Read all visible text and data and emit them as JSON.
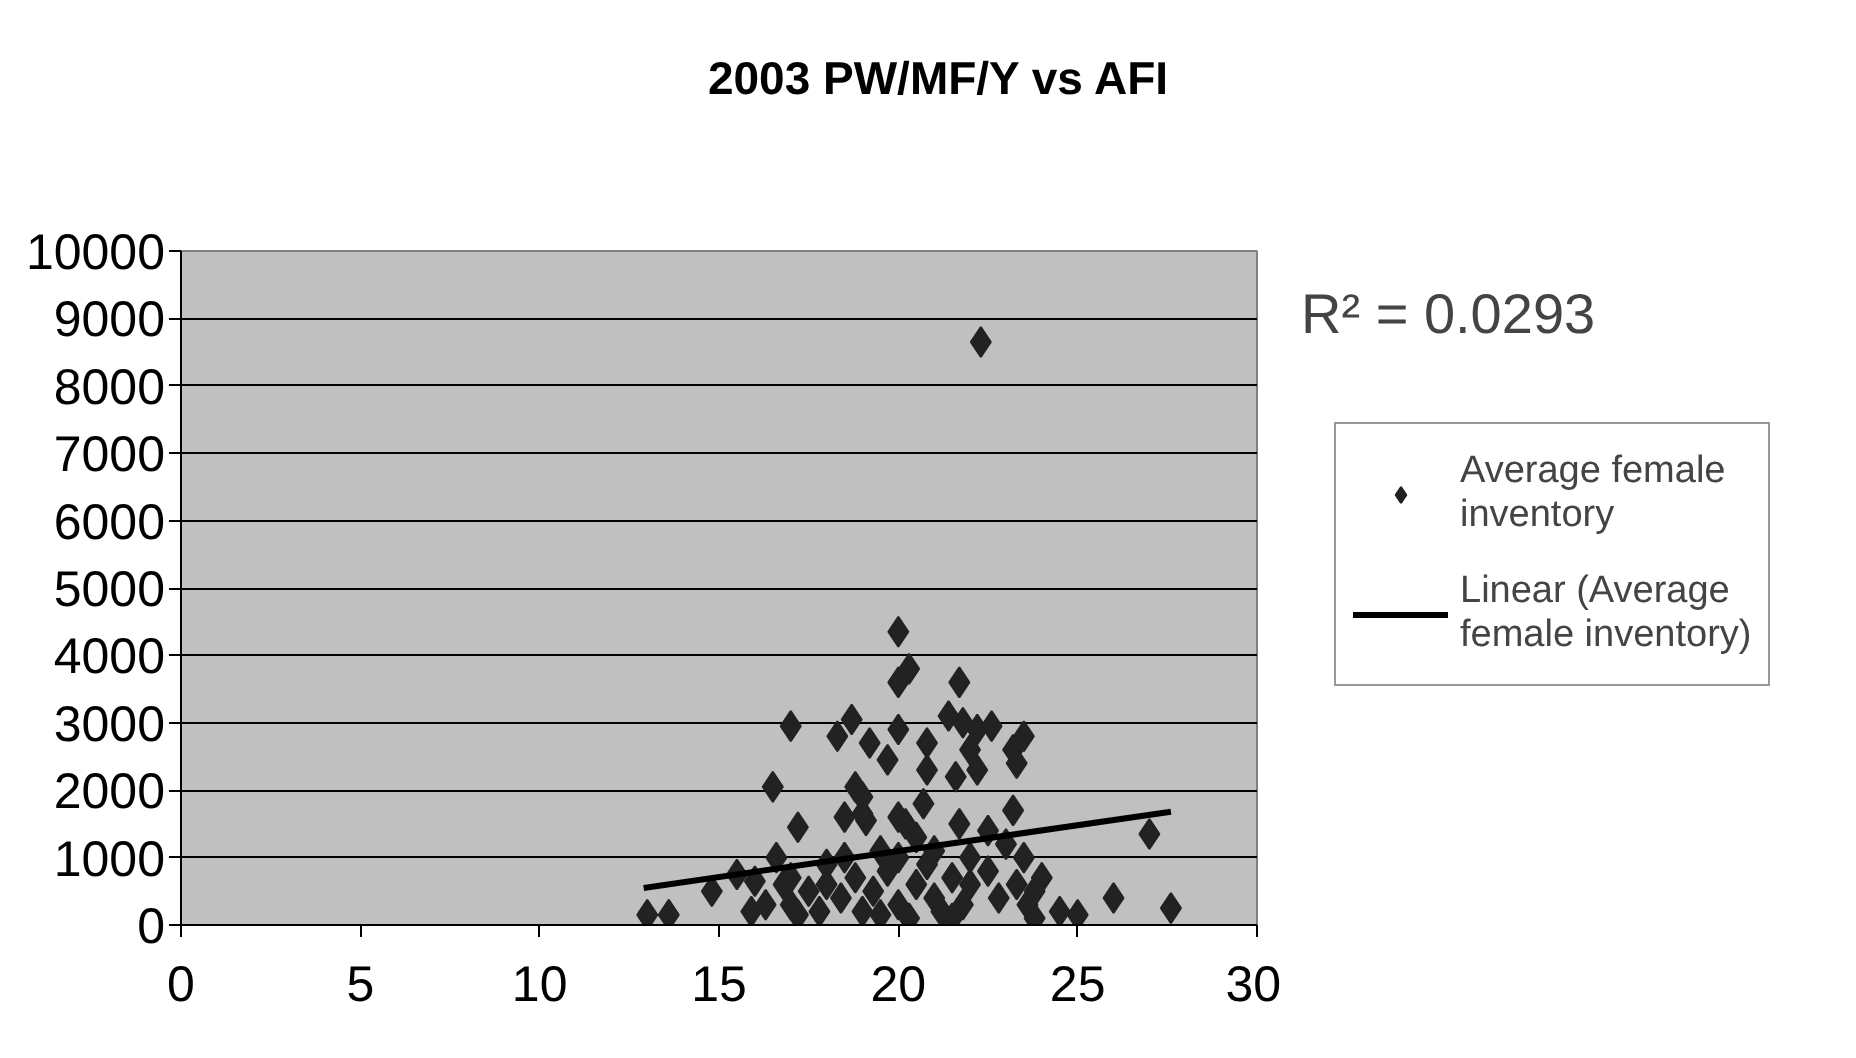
{
  "chart_data": {
    "type": "scatter",
    "title": "2003 PW/MF/Y vs AFI",
    "xlim": [
      0,
      30
    ],
    "xticks": [
      0,
      5,
      10,
      15,
      20,
      25,
      30
    ],
    "ylim": [
      0,
      10000
    ],
    "yticks": [
      0,
      1000,
      2000,
      3000,
      4000,
      5000,
      6000,
      7000,
      8000,
      9000,
      10000
    ],
    "grid": "y",
    "legend": "right",
    "annotations": [
      "R² = 0.0293"
    ],
    "series": [
      {
        "name": "Average female inventory",
        "color": "#222222",
        "marker": "diamond",
        "x": [
          22.3,
          20,
          20.3,
          20,
          21.7,
          17,
          18.7,
          18.3,
          19.2,
          20,
          20.8,
          21.4,
          21.8,
          22.2,
          22.6,
          23.2,
          23.5,
          23.3,
          22,
          21.6,
          22.2,
          20.8,
          19.7,
          18.8,
          19,
          16.5,
          17.2,
          18.5,
          19.1,
          19,
          20,
          20.2,
          20.7,
          21.7,
          22.5,
          23.2,
          23,
          23.5,
          27,
          26,
          27.6,
          13,
          13.6,
          14.8,
          15.5,
          16,
          16.6,
          15.9,
          16.8,
          17,
          17.2,
          17.5,
          17.8,
          18,
          18.4,
          18.8,
          19,
          19.3,
          19.7,
          20,
          20.3,
          20.5,
          20.8,
          21,
          21.2,
          21.5,
          21.8,
          22,
          22.5,
          22.8,
          23.3,
          23.6,
          23.8,
          24,
          24.5,
          25,
          17,
          18.5,
          19.5,
          20.5,
          21,
          22,
          23.8,
          16.3,
          19.5,
          21.5,
          20,
          18
        ],
        "values": [
          8650,
          4350,
          3800,
          3600,
          3600,
          2950,
          3050,
          2800,
          2700,
          2900,
          2700,
          3100,
          3000,
          2900,
          2950,
          2600,
          2800,
          2400,
          2600,
          2200,
          2300,
          2300,
          2450,
          2050,
          1900,
          2050,
          1450,
          1600,
          1550,
          1650,
          1600,
          1500,
          1800,
          1500,
          1400,
          1700,
          1200,
          1000,
          1350,
          400,
          250,
          150,
          150,
          500,
          750,
          650,
          1000,
          200,
          600,
          300,
          150,
          500,
          200,
          900,
          400,
          700,
          200,
          500,
          800,
          300,
          100,
          600,
          900,
          400,
          200,
          700,
          300,
          600,
          800,
          400,
          600,
          300,
          100,
          700,
          200,
          150,
          700,
          1000,
          1100,
          1300,
          1100,
          1000,
          500,
          300,
          150,
          100,
          1000,
          600
        ]
      },
      {
        "name": "Linear (Average female inventory)",
        "type": "line",
        "marker": "none",
        "color": "#000000",
        "x": [
          12.9,
          27.6
        ],
        "values": [
          550,
          1680
        ]
      }
    ]
  }
}
